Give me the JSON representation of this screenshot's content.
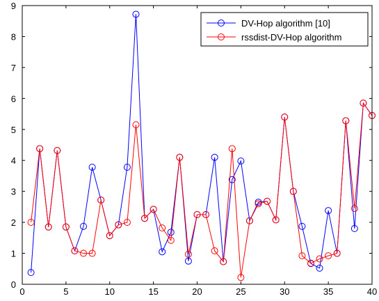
{
  "chart_data": {
    "type": "line",
    "title": "",
    "xlabel": "",
    "ylabel": "",
    "xlim": [
      0,
      40
    ],
    "ylim": [
      0,
      9
    ],
    "xticks": [
      0,
      5,
      10,
      15,
      20,
      25,
      30,
      35,
      40
    ],
    "yticks": [
      0,
      1,
      2,
      3,
      4,
      5,
      6,
      7,
      8,
      9
    ],
    "grid": false,
    "legend_position": "top-right",
    "x": [
      1,
      2,
      3,
      4,
      5,
      6,
      7,
      8,
      9,
      10,
      11,
      12,
      13,
      14,
      15,
      16,
      17,
      18,
      19,
      20,
      21,
      22,
      23,
      24,
      25,
      26,
      27,
      28,
      29,
      30,
      31,
      32,
      33,
      34,
      35,
      36,
      37,
      38,
      39,
      40
    ],
    "series": [
      {
        "name": "DV-Hop algorithm [10]",
        "color": "#0000ff",
        "marker": "circle",
        "values": [
          0.38,
          4.38,
          1.85,
          4.32,
          1.85,
          1.08,
          1.87,
          3.78,
          2.72,
          1.57,
          1.92,
          3.78,
          8.72,
          2.13,
          2.42,
          1.05,
          1.68,
          4.1,
          0.75,
          2.25,
          2.25,
          4.1,
          0.73,
          3.38,
          3.98,
          2.05,
          2.65,
          2.68,
          2.08,
          5.4,
          3.0,
          1.87,
          0.67,
          0.52,
          2.38,
          1.0,
          5.28,
          1.8,
          5.85,
          5.45
        ]
      },
      {
        "name": "rssdist-DV-Hop algorithm",
        "color": "#ff0000",
        "marker": "circle",
        "values": [
          2.0,
          4.38,
          1.85,
          4.32,
          1.85,
          1.08,
          1.0,
          1.0,
          2.72,
          1.57,
          1.92,
          2.0,
          5.15,
          2.13,
          2.42,
          1.82,
          1.42,
          4.1,
          0.97,
          2.25,
          2.25,
          1.08,
          0.73,
          4.38,
          0.22,
          2.05,
          2.6,
          2.68,
          2.08,
          5.4,
          3.0,
          0.92,
          0.68,
          0.82,
          0.92,
          1.0,
          5.28,
          2.45,
          5.85,
          5.45
        ]
      }
    ]
  }
}
